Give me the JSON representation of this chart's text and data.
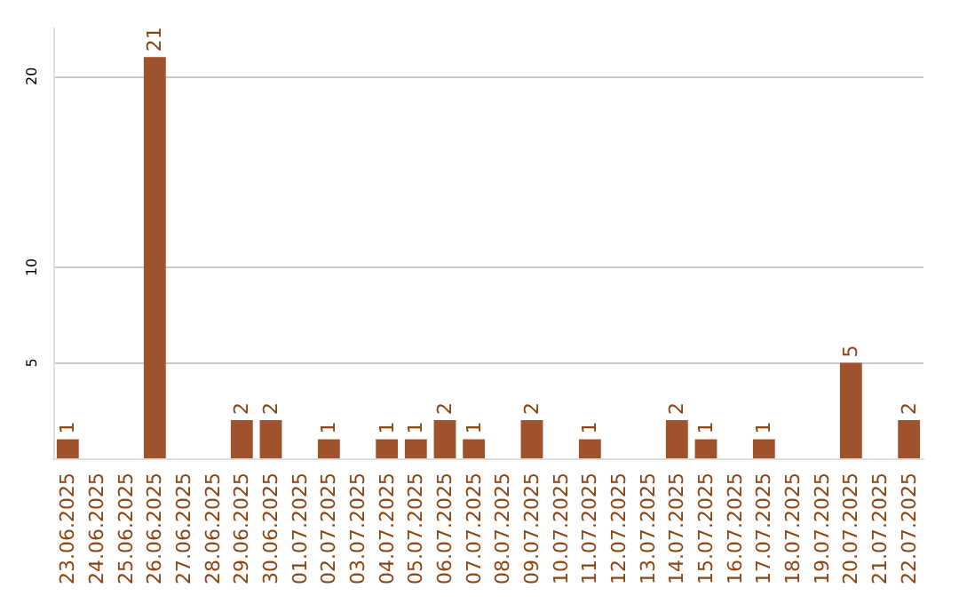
{
  "chart_data": {
    "type": "bar",
    "categories": [
      "23.06.2025",
      "24.06.2025",
      "25.06.2025",
      "26.06.2025",
      "27.06.2025",
      "28.06.2025",
      "29.06.2025",
      "30.06.2025",
      "01.07.2025",
      "02.07.2025",
      "03.07.2025",
      "04.07.2025",
      "05.07.2025",
      "06.07.2025",
      "07.07.2025",
      "08.07.2025",
      "09.07.2025",
      "10.07.2025",
      "11.07.2025",
      "12.07.2025",
      "13.07.2025",
      "14.07.2025",
      "15.07.2025",
      "16.07.2025",
      "17.07.2025",
      "18.07.2025",
      "19.07.2025",
      "20.07.2025",
      "21.07.2025",
      "22.07.2025"
    ],
    "values": [
      1,
      0,
      0,
      21,
      0,
      0,
      2,
      2,
      0,
      1,
      0,
      1,
      1,
      2,
      1,
      0,
      2,
      0,
      1,
      0,
      0,
      2,
      1,
      0,
      1,
      0,
      0,
      5,
      0,
      2
    ],
    "value_labels": [
      "1",
      null,
      null,
      "21",
      null,
      null,
      "2",
      "2",
      null,
      "1",
      null,
      "1",
      "1",
      "2",
      "1",
      null,
      "2",
      null,
      "1",
      null,
      null,
      "2",
      "1",
      null,
      "1",
      null,
      null,
      "5",
      null,
      "2"
    ],
    "color": "#a0522d",
    "ylim": [
      0,
      22.5
    ],
    "yticks": [
      5,
      10,
      20
    ],
    "grid": "y"
  }
}
